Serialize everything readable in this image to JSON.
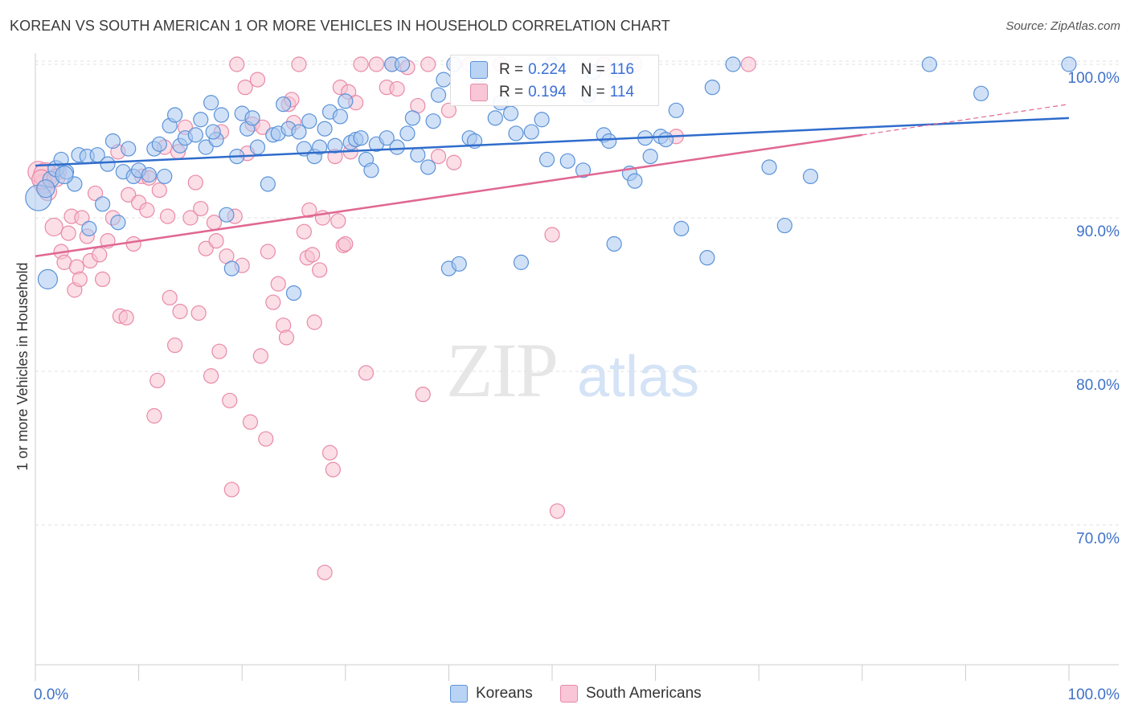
{
  "title": "KOREAN VS SOUTH AMERICAN 1 OR MORE VEHICLES IN HOUSEHOLD CORRELATION CHART",
  "source": "Source: ZipAtlas.com",
  "watermark": {
    "zip": "ZIP",
    "atlas": "atlas"
  },
  "legend_top": [
    {
      "r_label": "R =",
      "r_value": "0.224",
      "n_label": "N =",
      "n_value": "116"
    },
    {
      "r_label": "R =",
      "r_value": "0.194",
      "n_label": "N =",
      "n_value": "114"
    }
  ],
  "legend_bottom": [
    "Koreans",
    "South Americans"
  ],
  "colors": {
    "koreans_fill": "#a9c8f0",
    "koreans_stroke": "#5b92d8",
    "koreans_line": "#2f6ccc",
    "sa_fill": "#f7c2d2",
    "sa_stroke": "#e98aa8",
    "sa_line": "#e06893",
    "axis_text": "#3f72c8",
    "grid": "#e0e0e0"
  },
  "chart_data": {
    "type": "scatter",
    "title": "KOREAN VS SOUTH AMERICAN 1 OR MORE VEHICLES IN HOUSEHOLD CORRELATION CHART",
    "xlabel": "",
    "ylabel": "1 or more Vehicles in Household",
    "xlim": [
      0,
      100
    ],
    "ylim": [
      60,
      102
    ],
    "x_tick_labels": [
      "0.0%",
      "100.0%"
    ],
    "y_ticks": [
      100,
      90,
      80,
      70
    ],
    "y_tick_labels": [
      "100.0%",
      "90.0%",
      "80.0%",
      "70.0%"
    ],
    "grid": true,
    "legend_placement": "top-center",
    "series": [
      {
        "name": "Koreans",
        "r": 0.224,
        "n": 116,
        "trend": {
          "x": [
            0,
            100
          ],
          "y": [
            93.4,
            96.5
          ]
        },
        "points": [
          [
            0.3,
            91.3,
            16
          ],
          [
            1.2,
            86.0,
            12
          ],
          [
            1.5,
            92.5,
            10
          ],
          [
            2.0,
            93.2,
            10
          ],
          [
            2.5,
            93.8,
            9
          ],
          [
            3.0,
            93.0,
            9
          ],
          [
            3.8,
            92.2,
            9
          ],
          [
            4.2,
            94.1,
            9
          ],
          [
            5.0,
            94.0,
            9
          ],
          [
            6.0,
            94.1,
            9
          ],
          [
            5.2,
            89.3,
            9
          ],
          [
            6.5,
            90.9,
            9
          ],
          [
            7.0,
            93.5,
            9
          ],
          [
            7.5,
            95.0,
            9
          ],
          [
            8.0,
            89.7,
            9
          ],
          [
            8.5,
            93.0,
            9
          ],
          [
            9.0,
            94.5,
            9
          ],
          [
            9.5,
            92.7,
            9
          ],
          [
            10.0,
            93.1,
            9
          ],
          [
            11.0,
            92.8,
            9
          ],
          [
            11.5,
            94.5,
            9
          ],
          [
            12.0,
            94.8,
            9
          ],
          [
            12.5,
            92.7,
            9
          ],
          [
            13.0,
            96.0,
            9
          ],
          [
            13.5,
            96.7,
            9
          ],
          [
            14.0,
            94.7,
            9
          ],
          [
            14.5,
            95.2,
            9
          ],
          [
            15.5,
            95.4,
            9
          ],
          [
            16.0,
            96.4,
            9
          ],
          [
            16.5,
            94.6,
            9
          ],
          [
            17.0,
            97.5,
            9
          ],
          [
            17.5,
            95.1,
            9
          ],
          [
            18.0,
            96.7,
            9
          ],
          [
            18.5,
            90.2,
            9
          ],
          [
            19.0,
            86.7,
            9
          ],
          [
            19.5,
            94.0,
            9
          ],
          [
            20.0,
            96.8,
            9
          ],
          [
            20.5,
            95.8,
            9
          ],
          [
            21.0,
            96.5,
            9
          ],
          [
            21.5,
            94.6,
            9
          ],
          [
            22.5,
            92.2,
            9
          ],
          [
            23.0,
            95.4,
            9
          ],
          [
            23.5,
            95.5,
            9
          ],
          [
            24.0,
            97.4,
            9
          ],
          [
            24.5,
            95.8,
            9
          ],
          [
            25.0,
            85.1,
            9
          ],
          [
            25.5,
            95.6,
            9
          ],
          [
            26.0,
            94.5,
            9
          ],
          [
            26.5,
            96.3,
            9
          ],
          [
            27.0,
            94.0,
            9
          ],
          [
            27.5,
            94.6,
            9
          ],
          [
            28.0,
            95.8,
            9
          ],
          [
            28.5,
            96.9,
            9
          ],
          [
            29.0,
            94.7,
            9
          ],
          [
            29.5,
            96.6,
            9
          ],
          [
            30.0,
            97.6,
            9
          ],
          [
            30.5,
            94.9,
            9
          ],
          [
            31.0,
            95.1,
            9
          ],
          [
            31.5,
            95.2,
            9
          ],
          [
            32.0,
            93.8,
            9
          ],
          [
            32.5,
            93.1,
            9
          ],
          [
            33.0,
            94.8,
            9
          ],
          [
            34.0,
            95.2,
            9
          ],
          [
            34.5,
            100.0,
            9
          ],
          [
            35.0,
            94.6,
            9
          ],
          [
            35.5,
            100.0,
            9
          ],
          [
            36.0,
            95.5,
            9
          ],
          [
            36.5,
            96.5,
            9
          ],
          [
            37.0,
            94.1,
            9
          ],
          [
            38.0,
            93.3,
            9
          ],
          [
            38.5,
            96.3,
            9
          ],
          [
            39.0,
            98.0,
            9
          ],
          [
            39.5,
            99.0,
            9
          ],
          [
            40.0,
            86.7,
            9
          ],
          [
            40.5,
            100.0,
            9
          ],
          [
            41.0,
            87.0,
            9
          ],
          [
            42.0,
            95.2,
            9
          ],
          [
            42.5,
            95.0,
            9
          ],
          [
            43.0,
            99.3,
            9
          ],
          [
            44.5,
            96.5,
            9
          ],
          [
            45.0,
            97.5,
            9
          ],
          [
            46.0,
            96.8,
            9
          ],
          [
            46.5,
            95.5,
            9
          ],
          [
            47.0,
            87.1,
            9
          ],
          [
            48.0,
            95.6,
            9
          ],
          [
            49.0,
            96.4,
            9
          ],
          [
            49.5,
            93.8,
            9
          ],
          [
            50.0,
            100.0,
            9
          ],
          [
            51.5,
            93.7,
            9
          ],
          [
            53.0,
            93.1,
            9
          ],
          [
            53.5,
            98.0,
            9
          ],
          [
            54.0,
            99.5,
            9
          ],
          [
            55.0,
            95.4,
            9
          ],
          [
            55.5,
            95.0,
            9
          ],
          [
            56.0,
            88.3,
            9
          ],
          [
            56.5,
            99.6,
            9
          ],
          [
            57.5,
            92.9,
            9
          ],
          [
            58.0,
            92.4,
            9
          ],
          [
            59.0,
            95.2,
            9
          ],
          [
            59.5,
            94.0,
            9
          ],
          [
            60.5,
            95.3,
            9
          ],
          [
            61.0,
            95.1,
            9
          ],
          [
            62.0,
            97.0,
            9
          ],
          [
            62.5,
            89.3,
            9
          ],
          [
            65.0,
            87.4,
            9
          ],
          [
            65.5,
            98.5,
            9
          ],
          [
            67.5,
            100.0,
            9
          ],
          [
            71.0,
            93.3,
            9
          ],
          [
            72.5,
            89.5,
            9
          ],
          [
            75.0,
            92.7,
            9
          ],
          [
            86.5,
            100.0,
            9
          ],
          [
            91.5,
            98.1,
            9
          ],
          [
            100.0,
            100.0,
            9
          ],
          [
            1.0,
            91.9,
            11
          ],
          [
            2.8,
            92.8,
            11
          ],
          [
            17.2,
            95.6,
            9
          ]
        ]
      },
      {
        "name": "South Americans",
        "r": 0.194,
        "n": 114,
        "trend": {
          "x": [
            0,
            80
          ],
          "y": [
            87.5,
            95.4
          ],
          "dashed_x": [
            80,
            100
          ],
          "dashed_y": [
            95.4,
            97.4
          ]
        },
        "points": [
          [
            0.3,
            93.0,
            13
          ],
          [
            0.8,
            92.2,
            12
          ],
          [
            1.2,
            91.7,
            11
          ],
          [
            1.8,
            89.4,
            11
          ],
          [
            2.3,
            93.0,
            9
          ],
          [
            2.5,
            87.8,
            9
          ],
          [
            2.8,
            87.1,
            9
          ],
          [
            3.2,
            89.0,
            9
          ],
          [
            3.5,
            90.1,
            9
          ],
          [
            3.8,
            85.3,
            9
          ],
          [
            4.0,
            86.8,
            9
          ],
          [
            4.3,
            86.0,
            9
          ],
          [
            4.5,
            90.0,
            9
          ],
          [
            5.0,
            88.8,
            9
          ],
          [
            5.3,
            87.2,
            9
          ],
          [
            5.8,
            91.6,
            9
          ],
          [
            6.2,
            87.6,
            9
          ],
          [
            6.5,
            86.0,
            9
          ],
          [
            7.0,
            88.5,
            9
          ],
          [
            7.5,
            90.0,
            9
          ],
          [
            8.0,
            94.3,
            9
          ],
          [
            8.2,
            83.6,
            9
          ],
          [
            8.8,
            83.5,
            9
          ],
          [
            9.0,
            91.5,
            9
          ],
          [
            9.5,
            88.3,
            9
          ],
          [
            10.0,
            91.0,
            9
          ],
          [
            10.3,
            92.7,
            9
          ],
          [
            10.8,
            90.5,
            9
          ],
          [
            11.0,
            92.6,
            9
          ],
          [
            11.5,
            77.1,
            9
          ],
          [
            11.8,
            79.4,
            9
          ],
          [
            12.0,
            91.8,
            9
          ],
          [
            12.5,
            94.6,
            9
          ],
          [
            12.8,
            90.1,
            9
          ],
          [
            13.0,
            84.8,
            9
          ],
          [
            13.5,
            81.7,
            9
          ],
          [
            13.8,
            94.3,
            9
          ],
          [
            14.0,
            83.9,
            9
          ],
          [
            14.5,
            95.9,
            9
          ],
          [
            15.0,
            90.0,
            9
          ],
          [
            15.5,
            92.3,
            9
          ],
          [
            15.8,
            83.8,
            9
          ],
          [
            16.0,
            90.6,
            9
          ],
          [
            16.5,
            88.0,
            9
          ],
          [
            17.0,
            79.7,
            9
          ],
          [
            17.3,
            89.7,
            9
          ],
          [
            17.5,
            88.5,
            9
          ],
          [
            17.8,
            81.3,
            9
          ],
          [
            18.0,
            95.6,
            9
          ],
          [
            18.5,
            87.5,
            9
          ],
          [
            18.8,
            78.1,
            9
          ],
          [
            19.0,
            72.3,
            9
          ],
          [
            19.3,
            90.1,
            9
          ],
          [
            19.5,
            100.0,
            9
          ],
          [
            20.0,
            86.9,
            9
          ],
          [
            20.3,
            98.5,
            9
          ],
          [
            20.5,
            94.2,
            9
          ],
          [
            20.8,
            76.7,
            9
          ],
          [
            21.0,
            96.1,
            9
          ],
          [
            21.5,
            99.0,
            9
          ],
          [
            21.8,
            81.0,
            9
          ],
          [
            22.0,
            95.9,
            9
          ],
          [
            22.3,
            75.6,
            9
          ],
          [
            22.5,
            87.8,
            9
          ],
          [
            23.0,
            84.5,
            9
          ],
          [
            23.5,
            85.7,
            9
          ],
          [
            24.0,
            83.0,
            9
          ],
          [
            24.3,
            82.2,
            9
          ],
          [
            24.5,
            97.4,
            9
          ],
          [
            24.8,
            97.7,
            9
          ],
          [
            25.0,
            96.2,
            9
          ],
          [
            25.5,
            100.0,
            9
          ],
          [
            26.0,
            89.1,
            9
          ],
          [
            26.3,
            87.4,
            9
          ],
          [
            26.5,
            90.5,
            9
          ],
          [
            26.8,
            87.6,
            9
          ],
          [
            27.0,
            83.2,
            9
          ],
          [
            27.5,
            86.6,
            9
          ],
          [
            27.8,
            90.0,
            9
          ],
          [
            28.0,
            66.9,
            9
          ],
          [
            28.5,
            74.7,
            9
          ],
          [
            28.8,
            73.6,
            9
          ],
          [
            29.0,
            94.0,
            9
          ],
          [
            29.3,
            89.8,
            9
          ],
          [
            29.5,
            98.5,
            9
          ],
          [
            29.8,
            88.2,
            9
          ],
          [
            30.0,
            88.3,
            9
          ],
          [
            30.3,
            98.2,
            9
          ],
          [
            30.5,
            94.3,
            9
          ],
          [
            31.0,
            97.5,
            9
          ],
          [
            31.5,
            100.0,
            9
          ],
          [
            32.0,
            79.9,
            9
          ],
          [
            33.0,
            100.0,
            9
          ],
          [
            34.0,
            98.5,
            9
          ],
          [
            34.5,
            100.0,
            9
          ],
          [
            35.0,
            98.4,
            9
          ],
          [
            36.0,
            99.8,
            9
          ],
          [
            37.0,
            97.3,
            9
          ],
          [
            37.5,
            78.5,
            9
          ],
          [
            38.0,
            100.0,
            9
          ],
          [
            39.0,
            94.0,
            9
          ],
          [
            40.0,
            97.0,
            9
          ],
          [
            40.5,
            93.6,
            9
          ],
          [
            42.0,
            100.0,
            9
          ],
          [
            45.0,
            100.0,
            9
          ],
          [
            50.0,
            88.9,
            9
          ],
          [
            50.5,
            70.9,
            9
          ],
          [
            55.0,
            100.0,
            9
          ],
          [
            58.0,
            100.0,
            9
          ],
          [
            62.0,
            95.3,
            9
          ],
          [
            69.0,
            100.0,
            9
          ],
          [
            1.0,
            92.8,
            15
          ],
          [
            0.6,
            92.5,
            12
          ],
          [
            2.0,
            92.6,
            11
          ]
        ]
      }
    ]
  }
}
